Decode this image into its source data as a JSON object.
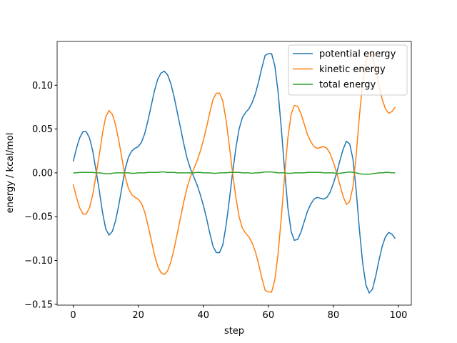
{
  "chart_data": {
    "type": "line",
    "x": [
      0,
      1,
      2,
      3,
      4,
      5,
      6,
      7,
      8,
      9,
      10,
      11,
      12,
      13,
      14,
      15,
      16,
      17,
      18,
      19,
      20,
      21,
      22,
      23,
      24,
      25,
      26,
      27,
      28,
      29,
      30,
      31,
      32,
      33,
      34,
      35,
      36,
      37,
      38,
      39,
      40,
      41,
      42,
      43,
      44,
      45,
      46,
      47,
      48,
      49,
      50,
      51,
      52,
      53,
      54,
      55,
      56,
      57,
      58,
      59,
      60,
      61,
      62,
      63,
      64,
      65,
      66,
      67,
      68,
      69,
      70,
      71,
      72,
      73,
      74,
      75,
      76,
      77,
      78,
      79,
      80,
      81,
      82,
      83,
      84,
      85,
      86,
      87,
      88,
      89,
      90,
      91,
      92,
      93,
      94,
      95,
      96,
      97,
      98,
      99
    ],
    "series": [
      {
        "name": "potential energy",
        "color": "#1f77b4",
        "values": [
          0.013,
          0.028,
          0.04,
          0.047,
          0.047,
          0.04,
          0.025,
          0.003,
          -0.02,
          -0.045,
          -0.064,
          -0.071,
          -0.067,
          -0.055,
          -0.037,
          -0.016,
          0.005,
          0.018,
          0.025,
          0.028,
          0.03,
          0.035,
          0.045,
          0.06,
          0.077,
          0.094,
          0.107,
          0.114,
          0.116,
          0.112,
          0.102,
          0.087,
          0.069,
          0.051,
          0.033,
          0.017,
          0.005,
          -0.004,
          -0.013,
          -0.024,
          -0.037,
          -0.052,
          -0.069,
          -0.084,
          -0.091,
          -0.091,
          -0.082,
          -0.06,
          -0.031,
          0.0,
          0.028,
          0.05,
          0.063,
          0.069,
          0.073,
          0.08,
          0.09,
          0.104,
          0.12,
          0.134,
          0.136,
          0.136,
          0.122,
          0.092,
          0.05,
          0.003,
          -0.04,
          -0.067,
          -0.077,
          -0.076,
          -0.068,
          -0.056,
          -0.044,
          -0.036,
          -0.03,
          -0.028,
          -0.029,
          -0.03,
          -0.028,
          -0.022,
          -0.012,
          0.0,
          0.014,
          0.027,
          0.036,
          0.033,
          0.016,
          -0.02,
          -0.065,
          -0.103,
          -0.128,
          -0.137,
          -0.133,
          -0.118,
          -0.1,
          -0.084,
          -0.073,
          -0.068,
          -0.07,
          -0.075
        ]
      },
      {
        "name": "kinetic energy",
        "color": "#ff7f0e",
        "values": [
          -0.013,
          -0.028,
          -0.04,
          -0.047,
          -0.047,
          -0.04,
          -0.025,
          -0.003,
          0.02,
          0.045,
          0.064,
          0.071,
          0.067,
          0.055,
          0.037,
          0.016,
          -0.005,
          -0.018,
          -0.025,
          -0.028,
          -0.03,
          -0.035,
          -0.045,
          -0.06,
          -0.077,
          -0.094,
          -0.107,
          -0.114,
          -0.116,
          -0.112,
          -0.102,
          -0.087,
          -0.069,
          -0.051,
          -0.033,
          -0.017,
          -0.005,
          0.004,
          0.013,
          0.024,
          0.037,
          0.052,
          0.069,
          0.084,
          0.091,
          0.091,
          0.082,
          0.06,
          0.031,
          0.0,
          -0.028,
          -0.05,
          -0.063,
          -0.069,
          -0.073,
          -0.08,
          -0.09,
          -0.104,
          -0.12,
          -0.134,
          -0.136,
          -0.136,
          -0.122,
          -0.092,
          -0.05,
          -0.003,
          0.04,
          0.067,
          0.077,
          0.076,
          0.068,
          0.056,
          0.044,
          0.036,
          0.03,
          0.028,
          0.029,
          0.03,
          0.028,
          0.022,
          0.012,
          0.0,
          -0.014,
          -0.027,
          -0.036,
          -0.033,
          -0.016,
          0.02,
          0.065,
          0.103,
          0.128,
          0.137,
          0.133,
          0.118,
          0.1,
          0.084,
          0.073,
          0.068,
          0.07,
          0.075
        ]
      },
      {
        "name": "total energy",
        "color": "#2ca02c",
        "values": [
          0,
          0,
          0.0005,
          0.0005,
          0.0005,
          0.0005,
          0.0005,
          0,
          0,
          -0.0005,
          -0.001,
          -0.001,
          -0.0005,
          0,
          0,
          0,
          0,
          0,
          -0.0005,
          -0.0005,
          0,
          0,
          0,
          0.0005,
          0.0005,
          0.0005,
          0.0005,
          0.001,
          0.001,
          0.0005,
          0.0005,
          0.0005,
          0,
          0,
          0,
          0,
          0,
          0,
          0.0005,
          0.0005,
          0,
          0,
          0,
          -0.0005,
          -0.0005,
          0,
          0,
          0,
          0.0005,
          0.0005,
          0.0005,
          0.0005,
          0,
          0,
          0,
          -0.0005,
          0,
          0,
          0.0005,
          0.001,
          0.001,
          0.001,
          0.0005,
          0,
          0,
          0,
          -0.0005,
          -0.0005,
          0,
          0,
          0,
          0,
          0.0005,
          0.0005,
          0.0005,
          0.0005,
          0.0005,
          0,
          0,
          0,
          0,
          -0.0005,
          -0.0005,
          0,
          0.0005,
          0.001,
          0.0005,
          0,
          -0.001,
          -0.0015,
          -0.0015,
          -0.0015,
          -0.001,
          -0.0005,
          0,
          0,
          0.0005,
          0.0005,
          0,
          0
        ]
      }
    ],
    "xlabel": "step",
    "ylabel": "energy / kcal/mol",
    "xlim": [
      -4.95,
      103.95
    ],
    "ylim": [
      -0.151,
      0.15
    ],
    "xticks": [
      0,
      20,
      40,
      60,
      80,
      100
    ],
    "yticks": [
      {
        "value": -0.15,
        "label": "−0.15"
      },
      {
        "value": -0.1,
        "label": "−0.10"
      },
      {
        "value": -0.05,
        "label": "−0.05"
      },
      {
        "value": 0,
        "label": "0.00"
      },
      {
        "value": 0.05,
        "label": "0.05"
      },
      {
        "value": 0.1,
        "label": "0.10"
      }
    ],
    "legend": "upper right"
  }
}
